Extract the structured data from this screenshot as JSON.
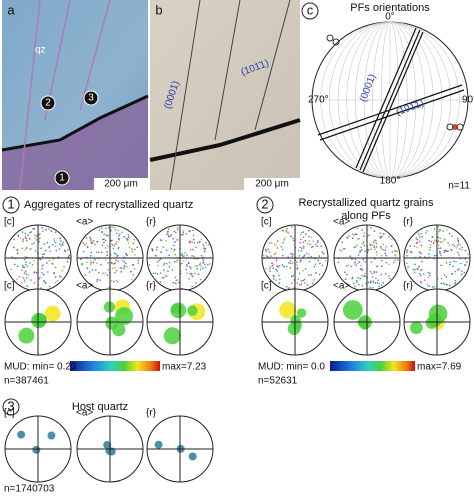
{
  "panel_a": {
    "label": "a",
    "mineral": "qz",
    "markers": [
      "1",
      "2",
      "3"
    ],
    "scale": "200 μm"
  },
  "panel_b": {
    "label": "b",
    "plane_1": "(0001)",
    "plane_2": "(101̄1)",
    "scale": "200 μm"
  },
  "panel_c": {
    "label": "c",
    "title": "PFs orientations",
    "north": "0°",
    "east": "90°",
    "south": "180°",
    "west": "270°",
    "plane_1": "(0001)",
    "plane_2": "(101̄1)",
    "n": "n=11"
  },
  "section_1": {
    "number": "1",
    "title": "Aggregates of recrystallized quartz",
    "axes": [
      "[c]",
      "<a>",
      "{r}"
    ],
    "mud_min": "MUD: min= 0.23",
    "mud_max": "max=7.23",
    "n": "n=387461"
  },
  "section_2": {
    "number": "2",
    "title_1": "Recrystallized quartz grains",
    "title_2": "along PFs",
    "axes": [
      "[c]",
      "<a>",
      "{r}"
    ],
    "mud_min": "MUD: min= 0.0",
    "mud_max": "max=7.69",
    "n": "n=52631"
  },
  "section_3": {
    "number": "3",
    "title": "Host quartz",
    "axes": [
      "[c]",
      "<a>",
      "{r}"
    ],
    "n": "n=1740703"
  }
}
